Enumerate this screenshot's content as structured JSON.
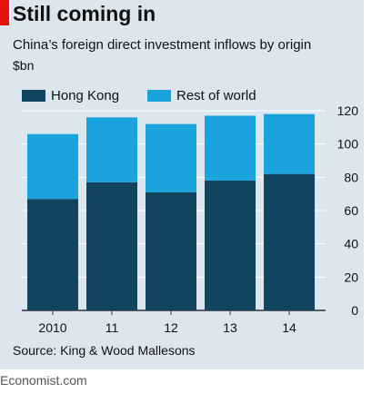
{
  "header": {
    "title": "Still coming in",
    "subtitle": "China’s foreign direct investment inflows by origin",
    "unit": "$bn"
  },
  "legend": [
    {
      "label": "Hong Kong",
      "color": "#10445f"
    },
    {
      "label": "Rest of world",
      "color": "#1aa3dd"
    }
  ],
  "footer": {
    "source": "Source: King & Wood Mallesons",
    "brand": "Economist.com"
  },
  "colors": {
    "background": "#dbe6ef",
    "accent": "#e3120b",
    "grid": "#ffffff"
  },
  "chart_data": {
    "type": "bar",
    "stacked": true,
    "categories": [
      "2010",
      "11",
      "12",
      "13",
      "14"
    ],
    "series": [
      {
        "name": "Hong Kong",
        "values": [
          67,
          77,
          71,
          78,
          82
        ],
        "color": "#10445f"
      },
      {
        "name": "Rest of world",
        "values": [
          39,
          39,
          41,
          39,
          36
        ],
        "color": "#1aa3dd"
      }
    ],
    "title": "Still coming in",
    "subtitle": "China’s foreign direct investment inflows by origin",
    "ylabel": "$bn",
    "ylim": [
      0,
      120
    ],
    "yticks": [
      0,
      20,
      40,
      60,
      80,
      100,
      120
    ],
    "yaxis_position": "right",
    "grid": true,
    "legend_position": "top-left"
  }
}
